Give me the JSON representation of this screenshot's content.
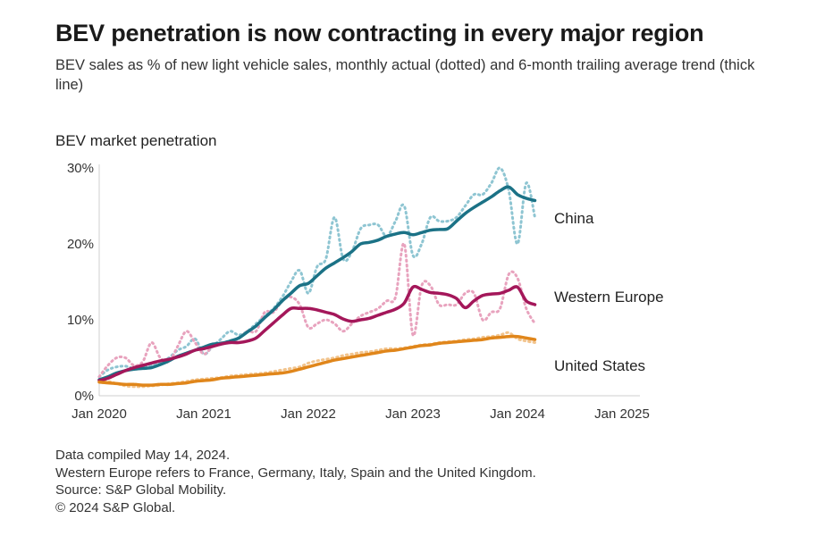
{
  "header": {
    "title": "BEV penetration is now contracting in every major region",
    "subtitle": "BEV sales as % of new light vehicle sales, monthly actual (dotted) and 6-month trailing average trend (thick line)"
  },
  "footer": {
    "lines": [
      "Data compiled May 14, 2024.",
      "Western Europe refers to France, Germany, Italy, Spain and the United Kingdom.",
      "Source: S&P Global Mobility.",
      "© 2024 S&P Global."
    ]
  },
  "chart_data": {
    "type": "line",
    "title": "BEV penetration is now contracting in every major region",
    "ylabel": "BEV market penetration",
    "xlabel": "",
    "x_ticks": [
      "Jan 2020",
      "Jan 2021",
      "Jan 2022",
      "Jan 2023",
      "Jan 2024",
      "Jan 2025"
    ],
    "y_ticks": [
      "0%",
      "10%",
      "20%",
      "30%"
    ],
    "xlim": [
      "2020-01",
      "2025-01"
    ],
    "ylim": [
      0,
      30
    ],
    "legend": "direct labels at right end of lines",
    "grid": false,
    "months": [
      "2020-01",
      "2020-02",
      "2020-03",
      "2020-04",
      "2020-05",
      "2020-06",
      "2020-07",
      "2020-08",
      "2020-09",
      "2020-10",
      "2020-11",
      "2020-12",
      "2021-01",
      "2021-02",
      "2021-03",
      "2021-04",
      "2021-05",
      "2021-06",
      "2021-07",
      "2021-08",
      "2021-09",
      "2021-10",
      "2021-11",
      "2021-12",
      "2022-01",
      "2022-02",
      "2022-03",
      "2022-04",
      "2022-05",
      "2022-06",
      "2022-07",
      "2022-08",
      "2022-09",
      "2022-10",
      "2022-11",
      "2022-12",
      "2023-01",
      "2023-02",
      "2023-03",
      "2023-04",
      "2023-05",
      "2023-06",
      "2023-07",
      "2023-08",
      "2023-09",
      "2023-10",
      "2023-11",
      "2023-12",
      "2024-01",
      "2024-02",
      "2024-03"
    ],
    "series": [
      {
        "name": "China",
        "color": "#1b7286",
        "actual_color": "#8ec5d2",
        "actual": [
          2.5,
          3.4,
          3.8,
          3.9,
          3.6,
          3.8,
          4.0,
          4.5,
          5.0,
          6.0,
          6.5,
          7.5,
          5.5,
          6.5,
          7.5,
          8.5,
          8.0,
          8.5,
          9.5,
          10.5,
          11.5,
          13.0,
          15.0,
          16.5,
          13.5,
          17.0,
          18.0,
          23.5,
          18.0,
          19.0,
          22.0,
          22.5,
          22.5,
          21.0,
          23.0,
          25.0,
          18.5,
          20.0,
          23.5,
          23.0,
          23.0,
          23.5,
          25.0,
          26.5,
          26.5,
          28.0,
          30.0,
          27.0,
          20.0,
          28.0,
          23.5
        ],
        "trend": [
          2.1,
          2.5,
          3.0,
          3.3,
          3.5,
          3.6,
          3.7,
          4.1,
          4.6,
          5.2,
          5.6,
          6.0,
          6.4,
          6.8,
          6.9,
          7.2,
          7.6,
          8.4,
          9.2,
          10.3,
          11.3,
          12.5,
          13.5,
          14.5,
          14.8,
          15.8,
          16.8,
          17.5,
          18.2,
          19.0,
          20.0,
          20.2,
          20.5,
          21.0,
          21.3,
          21.5,
          21.2,
          21.5,
          21.8,
          21.9,
          22.0,
          23.0,
          24.0,
          24.8,
          25.5,
          26.2,
          27.0,
          27.5,
          26.5,
          26.0,
          25.7
        ]
      },
      {
        "name": "Western Europe",
        "color": "#a4175a",
        "actual_color": "#e8a3be",
        "actual": [
          2.5,
          4.0,
          5.0,
          5.0,
          4.0,
          4.5,
          7.0,
          5.0,
          4.5,
          6.5,
          8.5,
          7.0,
          5.5,
          6.5,
          7.0,
          7.0,
          7.5,
          8.5,
          8.5,
          11.0,
          11.0,
          12.5,
          13.0,
          12.0,
          9.0,
          9.5,
          10.0,
          9.5,
          8.5,
          9.5,
          10.5,
          11.0,
          11.5,
          12.5,
          13.0,
          20.0,
          8.0,
          14.5,
          14.5,
          12.0,
          12.0,
          12.0,
          13.5,
          13.5,
          10.0,
          11.0,
          11.5,
          16.0,
          15.5,
          11.5,
          9.5
        ],
        "trend": [
          2.0,
          2.3,
          2.8,
          3.3,
          3.7,
          4.0,
          4.3,
          4.6,
          4.8,
          5.1,
          5.5,
          6.0,
          6.2,
          6.5,
          6.8,
          7.0,
          7.0,
          7.2,
          7.6,
          8.6,
          9.6,
          10.6,
          11.5,
          11.5,
          11.5,
          11.3,
          11.0,
          10.7,
          10.1,
          9.8,
          10.0,
          10.2,
          10.6,
          11.0,
          11.4,
          12.2,
          14.3,
          14.0,
          13.6,
          13.5,
          13.3,
          12.8,
          11.6,
          12.5,
          13.2,
          13.4,
          13.5,
          13.9,
          14.3,
          12.5,
          12.0
        ]
      },
      {
        "name": "United States",
        "color": "#e0861b",
        "actual_color": "#f2c48d",
        "actual": [
          1.9,
          1.9,
          1.6,
          1.3,
          1.2,
          1.2,
          1.3,
          1.4,
          1.6,
          1.7,
          1.9,
          2.1,
          2.2,
          2.3,
          2.4,
          2.6,
          2.7,
          2.8,
          2.9,
          3.0,
          3.2,
          3.4,
          3.6,
          3.8,
          4.3,
          4.6,
          4.8,
          5.0,
          5.3,
          5.5,
          5.7,
          5.8,
          6.0,
          6.2,
          6.2,
          6.3,
          6.5,
          6.7,
          6.8,
          7.0,
          7.1,
          7.2,
          7.4,
          7.5,
          7.7,
          7.8,
          8.0,
          8.3,
          7.5,
          7.2,
          7.0
        ],
        "trend": [
          1.8,
          1.7,
          1.6,
          1.5,
          1.5,
          1.4,
          1.4,
          1.5,
          1.5,
          1.6,
          1.7,
          1.9,
          2.0,
          2.1,
          2.3,
          2.4,
          2.5,
          2.6,
          2.7,
          2.8,
          2.9,
          3.0,
          3.2,
          3.5,
          3.8,
          4.1,
          4.4,
          4.7,
          4.9,
          5.1,
          5.3,
          5.5,
          5.7,
          5.9,
          6.0,
          6.2,
          6.4,
          6.6,
          6.7,
          6.9,
          7.0,
          7.1,
          7.2,
          7.3,
          7.4,
          7.6,
          7.7,
          7.8,
          7.8,
          7.6,
          7.4
        ]
      }
    ]
  }
}
